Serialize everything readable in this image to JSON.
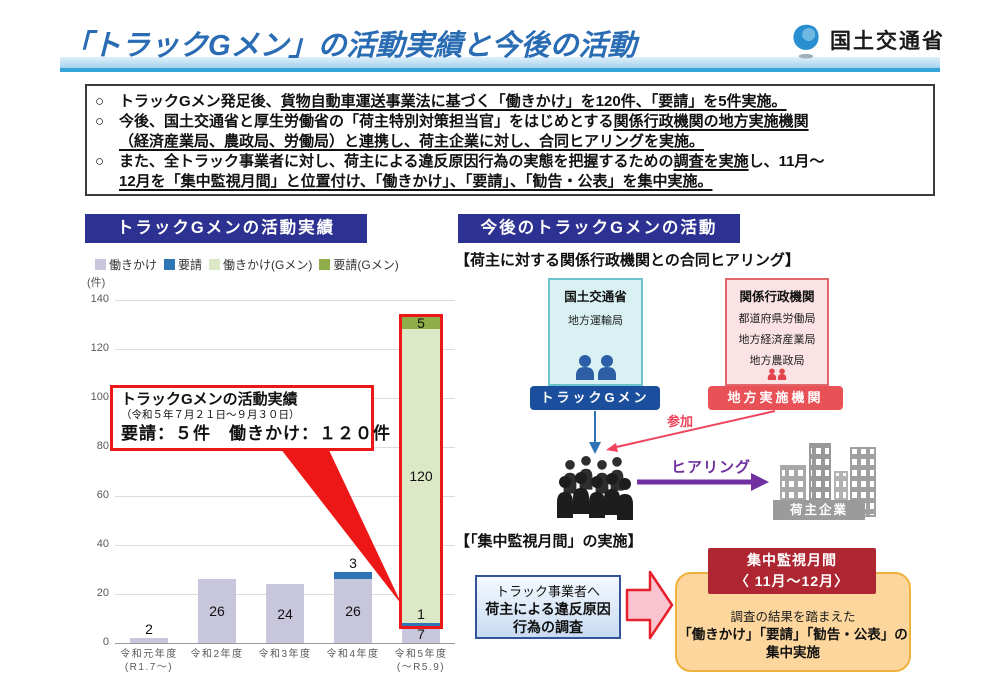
{
  "header": {
    "title": "「トラックGメン」の活動実績と今後の活動",
    "agency": "国土交通省"
  },
  "summary": {
    "bullets": [
      {
        "lines": [
          [
            {
              "t": "トラックGメン発足後、",
              "u": false
            },
            {
              "t": "貨物自動車運送事業法に基づく「働きかけ」を120件、「要請」を5件実施。",
              "u": true
            }
          ]
        ]
      },
      {
        "lines": [
          [
            {
              "t": "今後、国土交通省と厚生労働省の「荷主特別対策担当官」をはじめとする",
              "u": false
            },
            {
              "t": "関係行政機関の地方実施機関",
              "u": true
            }
          ],
          [
            {
              "t": "（経済産業局、農政局、労働局）と連携し、荷主企業に対し、合同ヒアリングを実施。",
              "u": true
            }
          ]
        ]
      },
      {
        "lines": [
          [
            {
              "t": "また、全トラック事業者に対し、荷主による違反原因行為の実態を把握するための",
              "u": false
            },
            {
              "t": "調査を実施",
              "u": true
            },
            {
              "t": "し、11月～",
              "u": false
            }
          ],
          [
            {
              "t": "12月を「集中監視月間」と位置付け、「働きかけ」、「要請」、「勧告・公表」を集中実施。",
              "u": true
            }
          ]
        ]
      }
    ]
  },
  "chart_data": {
    "type": "bar",
    "stacked": true,
    "title": "トラックGメンの活動実績",
    "unit_label": "(件)",
    "ylim": [
      0,
      140
    ],
    "ytick_step": 20,
    "grid": true,
    "legend_position": "top",
    "categories": [
      "令和元年度\n(R1.7～)",
      "令和2年度",
      "令和3年度",
      "令和4年度",
      "令和5年度\n(～R5.9)"
    ],
    "series": [
      {
        "name": "働きかけ",
        "color": "#c8c6dc",
        "values": [
          2,
          26,
          24,
          26,
          7
        ]
      },
      {
        "name": "要請",
        "color": "#2e75b6",
        "values": [
          0,
          0,
          0,
          3,
          1
        ]
      },
      {
        "name": "働きかけ(Gメン)",
        "color": "#dce8c6",
        "values": [
          0,
          0,
          0,
          0,
          120
        ]
      },
      {
        "name": "要請(Gメン)",
        "color": "#8fad49",
        "values": [
          0,
          0,
          0,
          0,
          5
        ]
      }
    ],
    "highlight_column": 4,
    "annotation": {
      "line1": "トラックGメンの活動実績",
      "line2": "（令和５年７月２１日～９月３０日）",
      "line3": "要請：５件　働きかけ：１２０件"
    }
  },
  "right_panel": {
    "title": "今後のトラックGメンの活動",
    "joint_hearing": {
      "section_title": "【荷主に対する関係行政機関との合同ヒアリング】",
      "mlit_box": {
        "title": "国土交通省",
        "sub": "地方運輸局"
      },
      "related_box": {
        "title": "関係行政機関",
        "item1": "都道府県労働局",
        "item2": "地方経済産業局",
        "item3": "地方農政局"
      },
      "gmen_badge": "トラックGメン",
      "regional_badge": "地方実施機関",
      "participate_label": "参加",
      "hearing_label": "ヒアリング",
      "shipper_label": "荷主企業"
    },
    "monitoring": {
      "section_title": "【「集中監視月間」の実施】",
      "survey_box": {
        "line1": "トラック事業者へ",
        "line2": "荷主による違反原因",
        "line3": "行為の調査"
      },
      "period_box": {
        "line1": "集中監視月間",
        "line2": "〈 11月～12月〉"
      },
      "result_box": {
        "line1": "調査の結果を踏まえた",
        "line2": "「働きかけ」「要請」「勧告・公表」の",
        "line3": "集中実施"
      }
    }
  },
  "colors": {
    "title_blue": "#2a6cb3",
    "band_blue": "#35a4da",
    "panel_navy": "#2d3191",
    "highlight_red": "#ee1717",
    "badge_blue": "#1b4f9e",
    "badge_red": "#e85156",
    "participate_red": "#f0435c",
    "hearing_purple": "#7030a0",
    "dark_red": "#ad2631",
    "orange_box": "#fcd69c"
  }
}
